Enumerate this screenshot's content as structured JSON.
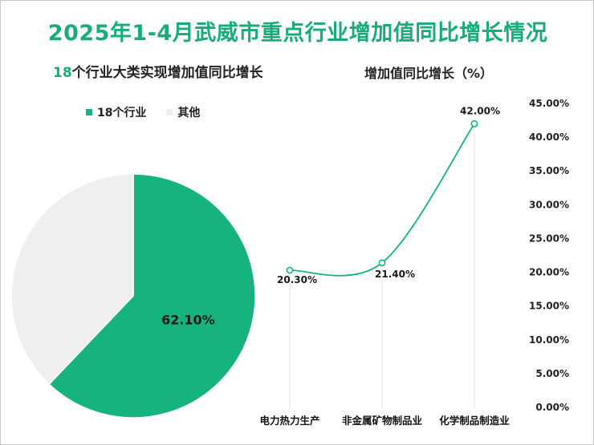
{
  "title": "2025年1-4月武威市重点行业增加值同比增长情况",
  "pie": {
    "title_num": "18",
    "title_rest": "个行业大类实现增加值同比增长",
    "legend": [
      {
        "label": "18个行业",
        "color": "#16b37c"
      },
      {
        "label": "其他",
        "color": "#efefef"
      }
    ],
    "slices": [
      {
        "name": "18个行业",
        "value": 62.1,
        "label": "62.10%",
        "color": "#16b37c"
      },
      {
        "name": "其他",
        "value": 37.9,
        "label": "",
        "color": "#efefef"
      }
    ]
  },
  "chart_data": [
    {
      "type": "pie",
      "title": "18个行业大类实现增加值同比增长",
      "categories": [
        "18个行业",
        "其他"
      ],
      "values": [
        62.1,
        37.9
      ],
      "data_labels": [
        "62.10%",
        ""
      ]
    },
    {
      "type": "line",
      "title": "增加值同比增长（%）",
      "categories": [
        "电力热力生产",
        "非金属矿物制品业",
        "化学制品制造业"
      ],
      "values": [
        20.3,
        21.4,
        42.0
      ],
      "data_labels": [
        "20.30%",
        "21.40%",
        "42.00%"
      ],
      "ylim": [
        0,
        45
      ],
      "yticks": [
        "0.00%",
        "5.00%",
        "10.00%",
        "15.00%",
        "20.00%",
        "25.00%",
        "30.00%",
        "35.00%",
        "40.00%",
        "45.00%"
      ],
      "color": "#16b37c"
    }
  ]
}
